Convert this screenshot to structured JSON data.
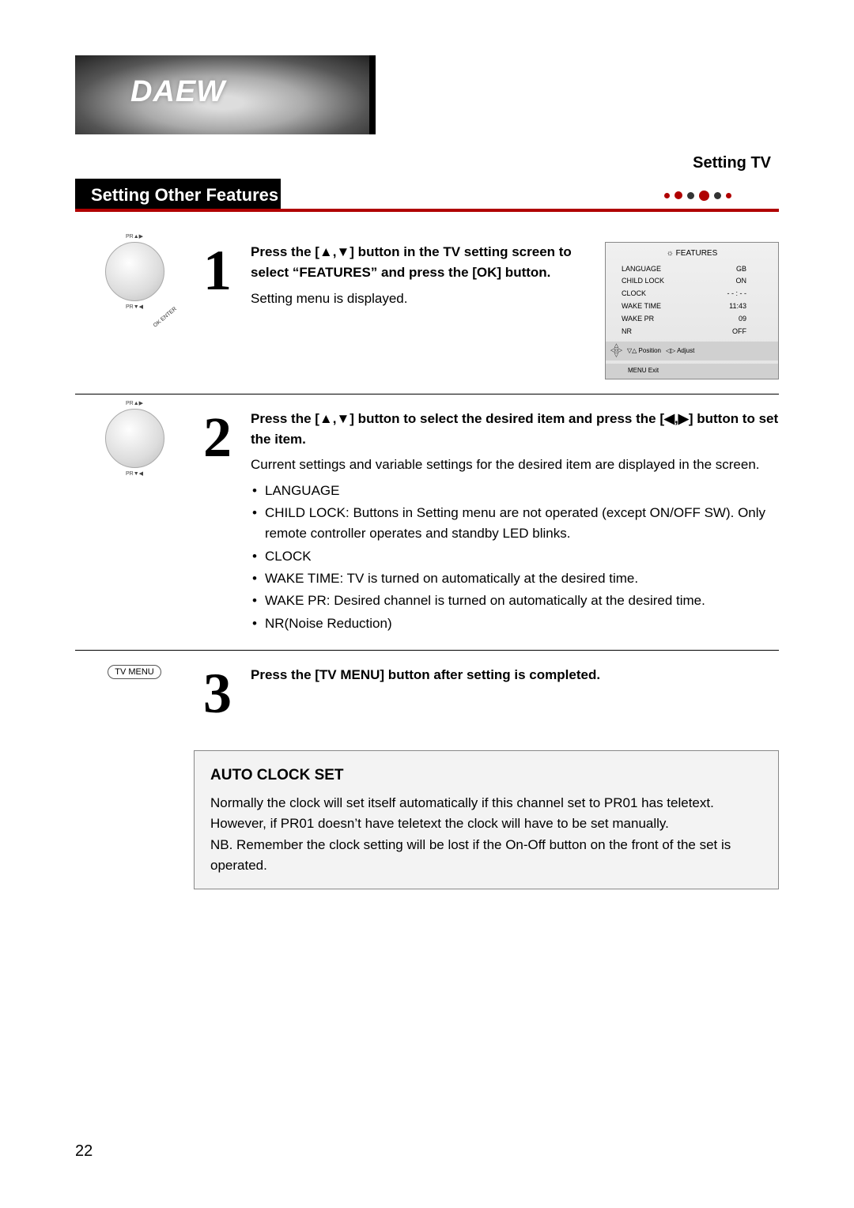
{
  "header": {
    "logo_text": "DAEW",
    "section_label": "Setting TV",
    "title": "Setting Other Features",
    "dots": [
      {
        "size": 7,
        "color": "#b00000"
      },
      {
        "size": 10,
        "color": "#b00000"
      },
      {
        "size": 9,
        "color": "#333333"
      },
      {
        "size": 13,
        "color": "#b00000"
      },
      {
        "size": 9,
        "color": "#333333"
      },
      {
        "size": 7,
        "color": "#b00000"
      }
    ],
    "underline_color": "#b00000"
  },
  "osd": {
    "title": "FEATURES",
    "rows": [
      {
        "label": "LANGUAGE",
        "value": "GB"
      },
      {
        "label": "CHILD LOCK",
        "value": "ON"
      },
      {
        "label": "CLOCK",
        "value": "- - : - -"
      },
      {
        "label": "WAKE TIME",
        "value": "11:43"
      },
      {
        "label": "WAKE PR",
        "value": "09"
      },
      {
        "label": "NR",
        "value": "OFF"
      }
    ],
    "footer_position": "Position",
    "footer_adjust": "Adjust",
    "footer_exit": "MENU Exit"
  },
  "steps": {
    "s1": {
      "num": "1",
      "bold": "Press the [▲,▼] button in the TV setting screen to select “FEATURES” and press the [OK] button.",
      "desc": "Setting menu is displayed.",
      "remote_top": "PR▲▶",
      "remote_bottom": "PR▼◀",
      "remote_ok": "OK ENTER"
    },
    "s2": {
      "num": "2",
      "bold": "Press the [▲,▼] button to  select the desired item and press the [◀,▶] button to set the item.",
      "desc": "Current settings and variable settings for the desired item are displayed in the screen.",
      "bullets": [
        "LANGUAGE",
        "CHILD LOCK: Buttons in Setting menu are not operated (except ON/OFF SW). Only remote controller operates and standby LED blinks.",
        "CLOCK",
        "WAKE TIME: TV is turned on automatically at the desired time.",
        "WAKE PR: Desired channel is turned on automatically at the desired time.",
        "NR(Noise Reduction)"
      ],
      "remote_top": "PR▲▶",
      "remote_bottom": "PR▼◀"
    },
    "s3": {
      "num": "3",
      "bold": "Press the [TV MENU] button after setting is completed.",
      "button_label": "TV MENU"
    }
  },
  "info": {
    "title": "AUTO CLOCK SET",
    "body": "Normally the clock will set itself automatically if this channel set to PR01 has teletext. However, if PR01 doesn’t have teletext the clock will have to be set manually.\nNB. Remember the clock setting will be lost if the On-Off button on the front of the set is operated."
  },
  "page_number": "22"
}
